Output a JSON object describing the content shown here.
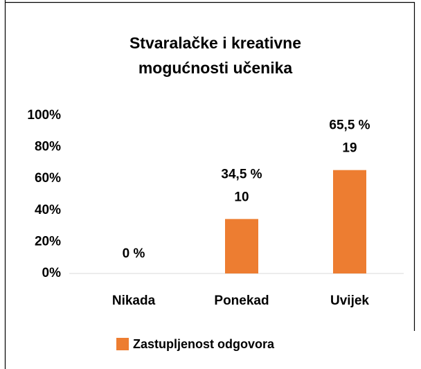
{
  "chart_data": {
    "type": "bar",
    "title": "Stvaralačke i kreativne mogućnosti učenika",
    "categories": [
      "Nikada",
      "Ponekad",
      "Uvijek"
    ],
    "series": [
      {
        "name": "Zastupljenost odgovora",
        "color": "#ed7d31",
        "values": [
          0,
          34.5,
          65.5
        ],
        "value_labels": [
          "0 %",
          "34,5 %",
          "65,5 %"
        ],
        "counts": [
          null,
          10,
          19
        ]
      }
    ],
    "ylim": [
      0,
      100
    ],
    "yticks": [
      {
        "value": 0,
        "label": "0%"
      },
      {
        "value": 20,
        "label": "20%"
      },
      {
        "value": 40,
        "label": "40%"
      },
      {
        "value": 60,
        "label": "60%"
      },
      {
        "value": 80,
        "label": "80%"
      },
      {
        "value": 100,
        "label": "100%"
      }
    ],
    "grid": false,
    "legend": "bottom"
  }
}
